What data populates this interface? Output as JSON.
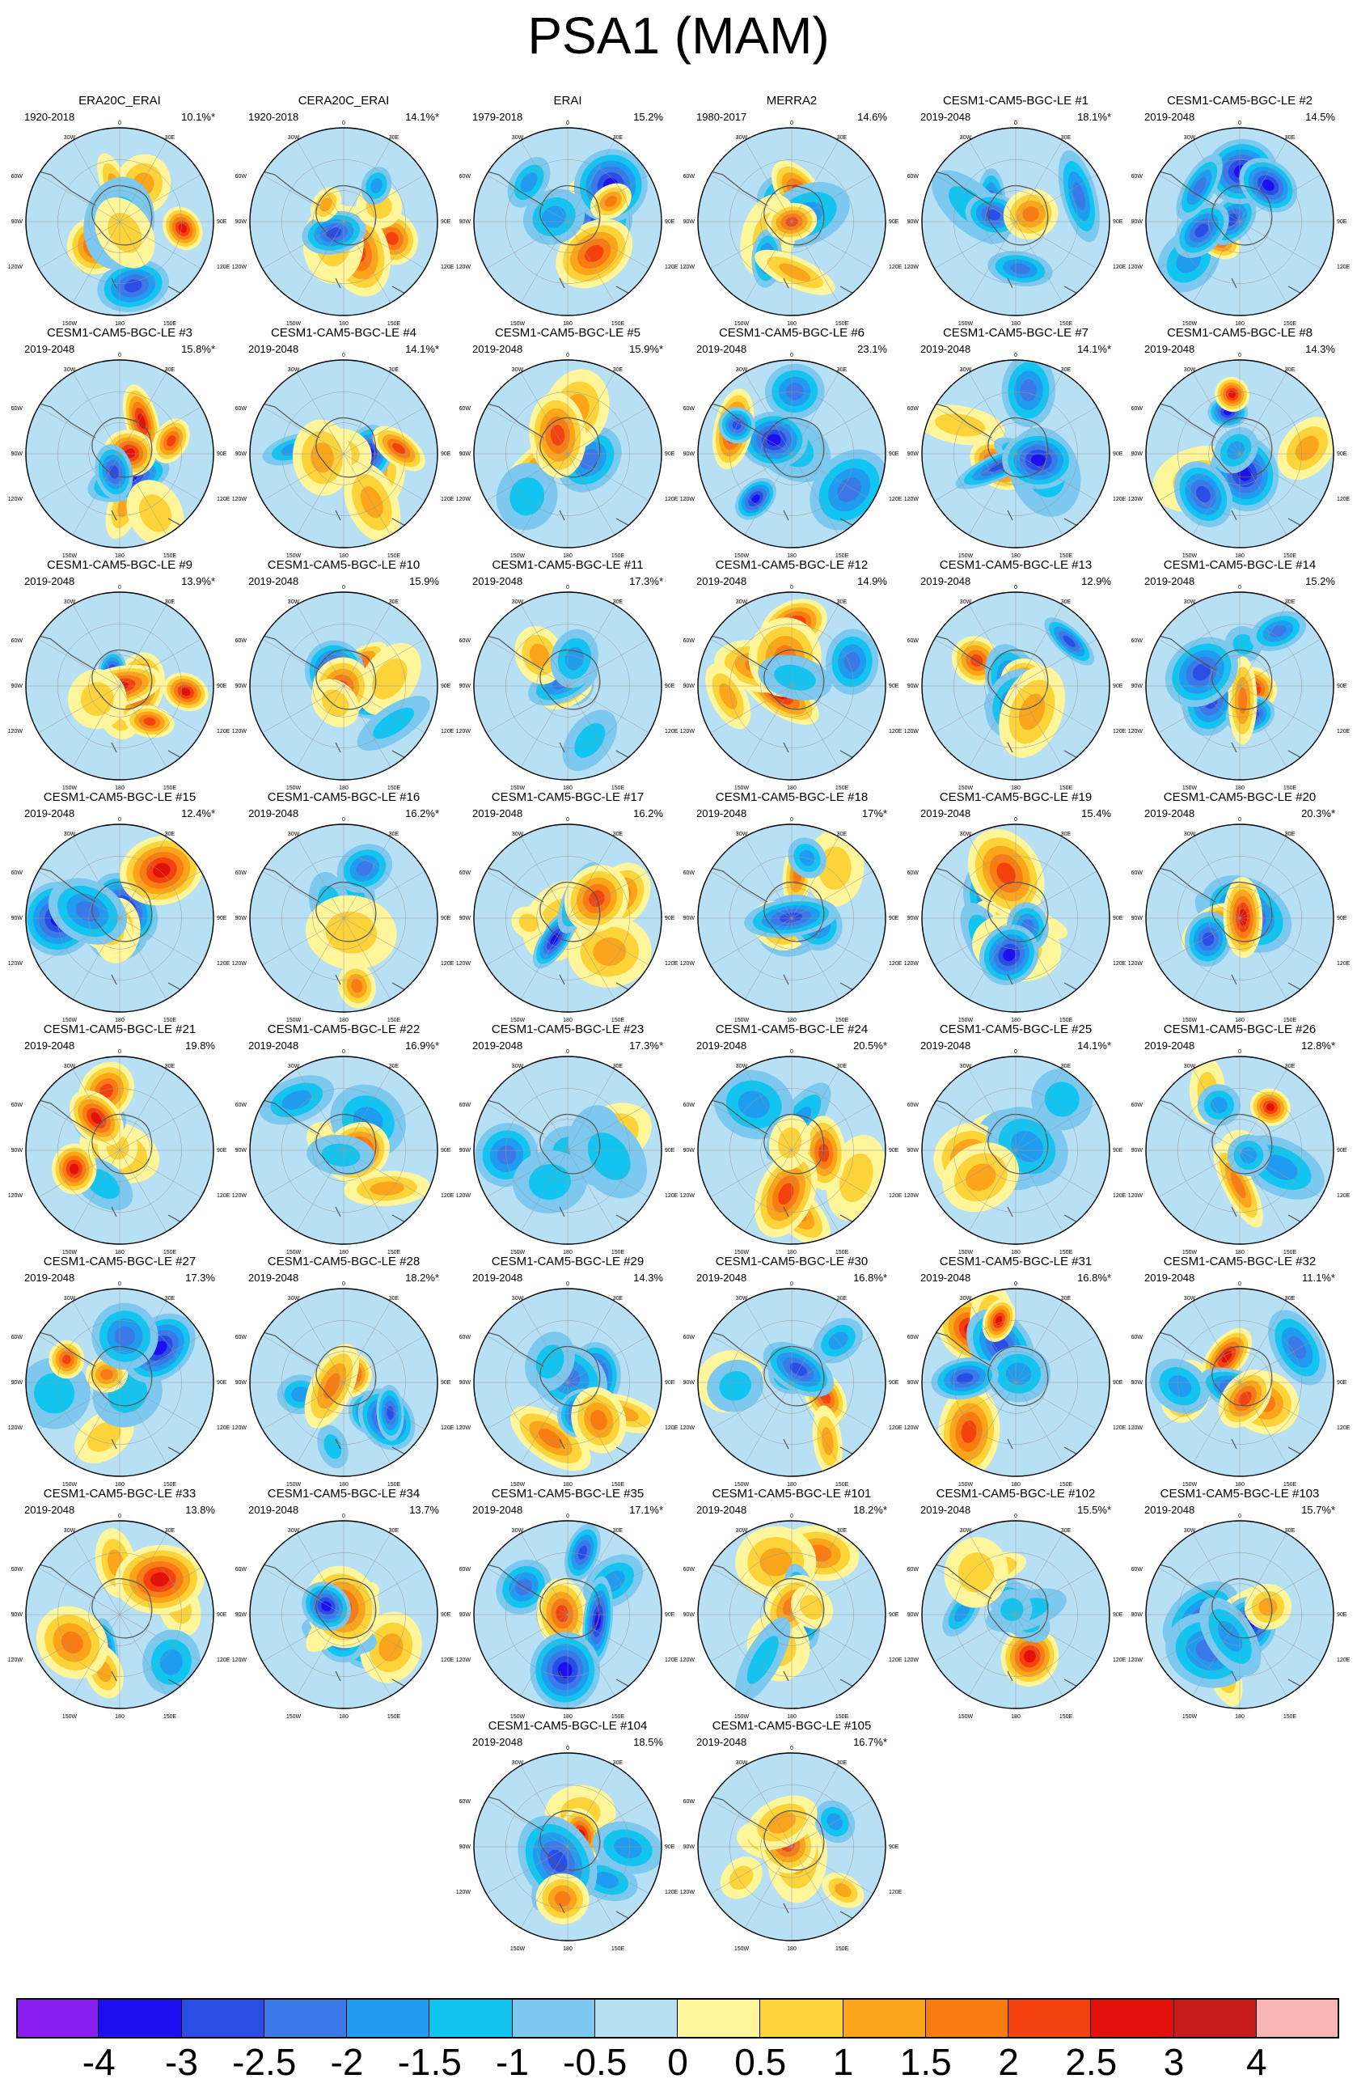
{
  "title": "PSA1 (MAM)",
  "chart_data": {
    "type": "heatmap",
    "projection": "south-polar-stereographic",
    "grid_lines": true,
    "map_labels": {
      "top": "0",
      "left_upper": "60W",
      "left_mid": "90W",
      "left_lower": "120W",
      "bottom_left": "150W",
      "bottom": "180",
      "bottom_right": "150E",
      "right_upper": "30E",
      "right_mid": "90E",
      "right_lower": "120E",
      "top_left": "30W"
    },
    "panels": [
      {
        "name": "ERA20C_ERAI",
        "years": "1920-2018",
        "variance": "10.1%*"
      },
      {
        "name": "CERA20C_ERAI",
        "years": "1920-2018",
        "variance": "14.1%*"
      },
      {
        "name": "ERAI",
        "years": "1979-2018",
        "variance": "15.2%"
      },
      {
        "name": "MERRA2",
        "years": "1980-2017",
        "variance": "14.6%"
      },
      {
        "name": "CESM1-CAM5-BGC-LE #1",
        "years": "2019-2048",
        "variance": "18.1%*"
      },
      {
        "name": "CESM1-CAM5-BGC-LE #2",
        "years": "2019-2048",
        "variance": "14.5%"
      },
      {
        "name": "CESM1-CAM5-BGC-LE #3",
        "years": "2019-2048",
        "variance": "15.8%*"
      },
      {
        "name": "CESM1-CAM5-BGC-LE #4",
        "years": "2019-2048",
        "variance": "14.1%*"
      },
      {
        "name": "CESM1-CAM5-BGC-LE #5",
        "years": "2019-2048",
        "variance": "15.9%*"
      },
      {
        "name": "CESM1-CAM5-BGC-LE #6",
        "years": "2019-2048",
        "variance": "23.1%"
      },
      {
        "name": "CESM1-CAM5-BGC-LE #7",
        "years": "2019-2048",
        "variance": "14.1%*"
      },
      {
        "name": "CESM1-CAM5-BGC-LE #8",
        "years": "2019-2048",
        "variance": "14.3%"
      },
      {
        "name": "CESM1-CAM5-BGC-LE #9",
        "years": "2019-2048",
        "variance": "13.9%*"
      },
      {
        "name": "CESM1-CAM5-BGC-LE #10",
        "years": "2019-2048",
        "variance": "15.9%"
      },
      {
        "name": "CESM1-CAM5-BGC-LE #11",
        "years": "2019-2048",
        "variance": "17.3%*"
      },
      {
        "name": "CESM1-CAM5-BGC-LE #12",
        "years": "2019-2048",
        "variance": "14.9%"
      },
      {
        "name": "CESM1-CAM5-BGC-LE #13",
        "years": "2019-2048",
        "variance": "12.9%"
      },
      {
        "name": "CESM1-CAM5-BGC-LE #14",
        "years": "2019-2048",
        "variance": "15.2%"
      },
      {
        "name": "CESM1-CAM5-BGC-LE #15",
        "years": "2019-2048",
        "variance": "12.4%*"
      },
      {
        "name": "CESM1-CAM5-BGC-LE #16",
        "years": "2019-2048",
        "variance": "16.2%*"
      },
      {
        "name": "CESM1-CAM5-BGC-LE #17",
        "years": "2019-2048",
        "variance": "16.2%"
      },
      {
        "name": "CESM1-CAM5-BGC-LE #18",
        "years": "2019-2048",
        "variance": "17%*"
      },
      {
        "name": "CESM1-CAM5-BGC-LE #19",
        "years": "2019-2048",
        "variance": "15.4%"
      },
      {
        "name": "CESM1-CAM5-BGC-LE #20",
        "years": "2019-2048",
        "variance": "20.3%*"
      },
      {
        "name": "CESM1-CAM5-BGC-LE #21",
        "years": "2019-2048",
        "variance": "19.8%"
      },
      {
        "name": "CESM1-CAM5-BGC-LE #22",
        "years": "2019-2048",
        "variance": "16.9%*"
      },
      {
        "name": "CESM1-CAM5-BGC-LE #23",
        "years": "2019-2048",
        "variance": "17.3%*"
      },
      {
        "name": "CESM1-CAM5-BGC-LE #24",
        "years": "2019-2048",
        "variance": "20.5%*"
      },
      {
        "name": "CESM1-CAM5-BGC-LE #25",
        "years": "2019-2048",
        "variance": "14.1%*"
      },
      {
        "name": "CESM1-CAM5-BGC-LE #26",
        "years": "2019-2048",
        "variance": "12.8%*"
      },
      {
        "name": "CESM1-CAM5-BGC-LE #27",
        "years": "2019-2048",
        "variance": "17.3%"
      },
      {
        "name": "CESM1-CAM5-BGC-LE #28",
        "years": "2019-2048",
        "variance": "18.2%*"
      },
      {
        "name": "CESM1-CAM5-BGC-LE #29",
        "years": "2019-2048",
        "variance": "14.3%"
      },
      {
        "name": "CESM1-CAM5-BGC-LE #30",
        "years": "2019-2048",
        "variance": "16.8%*"
      },
      {
        "name": "CESM1-CAM5-BGC-LE #31",
        "years": "2019-2048",
        "variance": "16.8%*"
      },
      {
        "name": "CESM1-CAM5-BGC-LE #32",
        "years": "2019-2048",
        "variance": "11.1%*"
      },
      {
        "name": "CESM1-CAM5-BGC-LE #33",
        "years": "2019-2048",
        "variance": "13.8%"
      },
      {
        "name": "CESM1-CAM5-BGC-LE #34",
        "years": "2019-2048",
        "variance": "13.7%"
      },
      {
        "name": "CESM1-CAM5-BGC-LE #35",
        "years": "2019-2048",
        "variance": "17.1%*"
      },
      {
        "name": "CESM1-CAM5-BGC-LE #101",
        "years": "2019-2048",
        "variance": "18.2%*"
      },
      {
        "name": "CESM1-CAM5-BGC-LE #102",
        "years": "2019-2048",
        "variance": "15.5%*"
      },
      {
        "name": "CESM1-CAM5-BGC-LE #103",
        "years": "2019-2048",
        "variance": "15.7%*"
      },
      {
        "name": "CESM1-CAM5-BGC-LE #104",
        "years": "2019-2048",
        "variance": "18.5%"
      },
      {
        "name": "CESM1-CAM5-BGC-LE #105",
        "years": "2019-2048",
        "variance": "16.7%*"
      }
    ],
    "colorbar": {
      "tick_labels": [
        "-4",
        "-3",
        "-2.5",
        "-2",
        "-1.5",
        "-1",
        "-0.5",
        "0",
        "0.5",
        "1",
        "1.5",
        "2",
        "2.5",
        "3",
        "4"
      ],
      "colors": [
        "#8a1ef0",
        "#1c0ff0",
        "#2a4de6",
        "#3b78e8",
        "#1f9cf0",
        "#12c4f0",
        "#7cc8ef",
        "#b7e0f4",
        "#fff59a",
        "#fcd43a",
        "#fba51a",
        "#f97b12",
        "#f3420e",
        "#e3110c",
        "#c81c1c",
        "#f9b4b4"
      ]
    }
  }
}
